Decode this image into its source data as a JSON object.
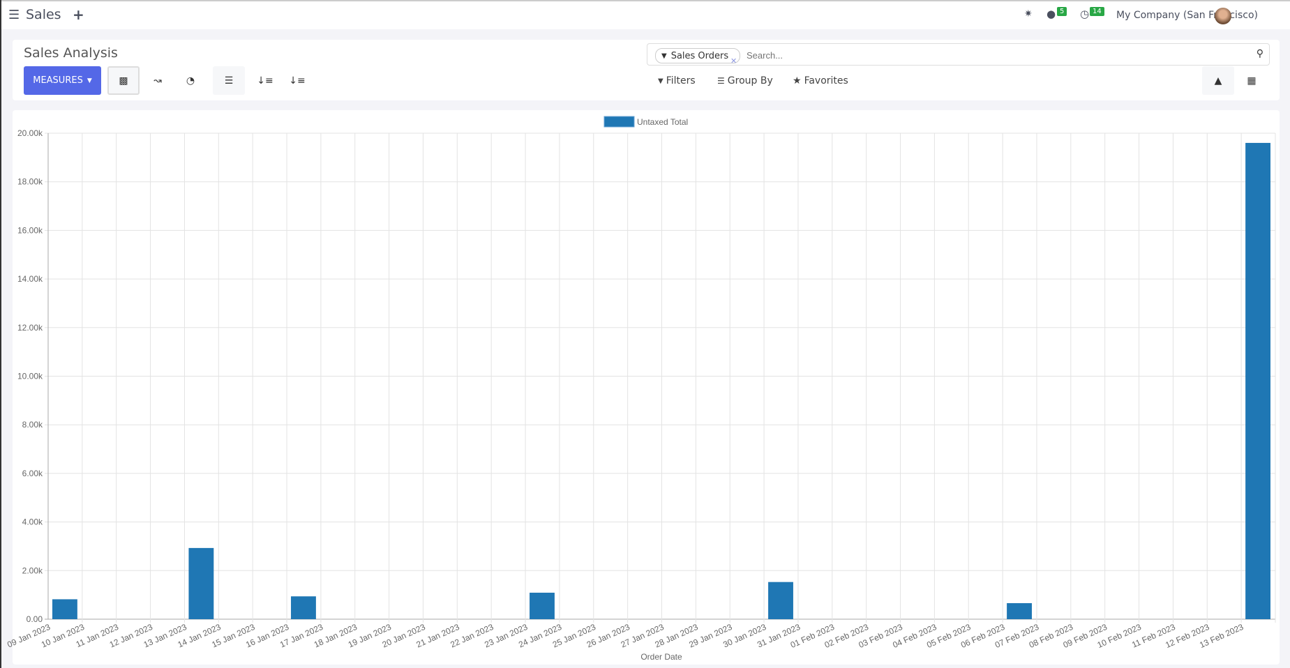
{
  "navbar": {
    "app_title": "Sales",
    "messages_count": "5",
    "activities_count": "14",
    "company": "My Company (San Francisco)"
  },
  "control_panel": {
    "title": "Sales Analysis",
    "measures_label": "MEASURES",
    "search": {
      "facet": "Sales Orders",
      "placeholder": "Search..."
    },
    "filters_label": "Filters",
    "group_by_label": "Group By",
    "favorites_label": "Favorites"
  },
  "colors": {
    "accent": "#5468e7",
    "bar": "#1f77b4",
    "badge": "#28a745"
  },
  "chart_data": {
    "type": "bar",
    "xlabel": "Order Date",
    "ylabel": "",
    "ylim": [
      0,
      20000
    ],
    "yticks": [
      "0.00",
      "2.00k",
      "4.00k",
      "6.00k",
      "8.00k",
      "10.00k",
      "12.00k",
      "14.00k",
      "16.00k",
      "18.00k",
      "20.00k"
    ],
    "grid": true,
    "legend_position": "top",
    "categories": [
      "09 Jan 2023",
      "10 Jan 2023",
      "11 Jan 2023",
      "12 Jan 2023",
      "13 Jan 2023",
      "14 Jan 2023",
      "15 Jan 2023",
      "16 Jan 2023",
      "17 Jan 2023",
      "18 Jan 2023",
      "19 Jan 2023",
      "20 Jan 2023",
      "21 Jan 2023",
      "22 Jan 2023",
      "23 Jan 2023",
      "24 Jan 2023",
      "25 Jan 2023",
      "26 Jan 2023",
      "27 Jan 2023",
      "28 Jan 2023",
      "29 Jan 2023",
      "30 Jan 2023",
      "31 Jan 2023",
      "01 Feb 2023",
      "02 Feb 2023",
      "03 Feb 2023",
      "04 Feb 2023",
      "05 Feb 2023",
      "06 Feb 2023",
      "07 Feb 2023",
      "08 Feb 2023",
      "09 Feb 2023",
      "10 Feb 2023",
      "11 Feb 2023",
      "12 Feb 2023",
      "13 Feb 2023"
    ],
    "series": [
      {
        "name": "Untaxed Total",
        "values": [
          820,
          0,
          0,
          0,
          2930,
          0,
          0,
          940,
          0,
          0,
          0,
          0,
          0,
          0,
          1090,
          0,
          0,
          0,
          0,
          0,
          0,
          1530,
          0,
          0,
          0,
          0,
          0,
          0,
          660,
          0,
          0,
          0,
          0,
          0,
          0,
          19600
        ]
      }
    ]
  }
}
